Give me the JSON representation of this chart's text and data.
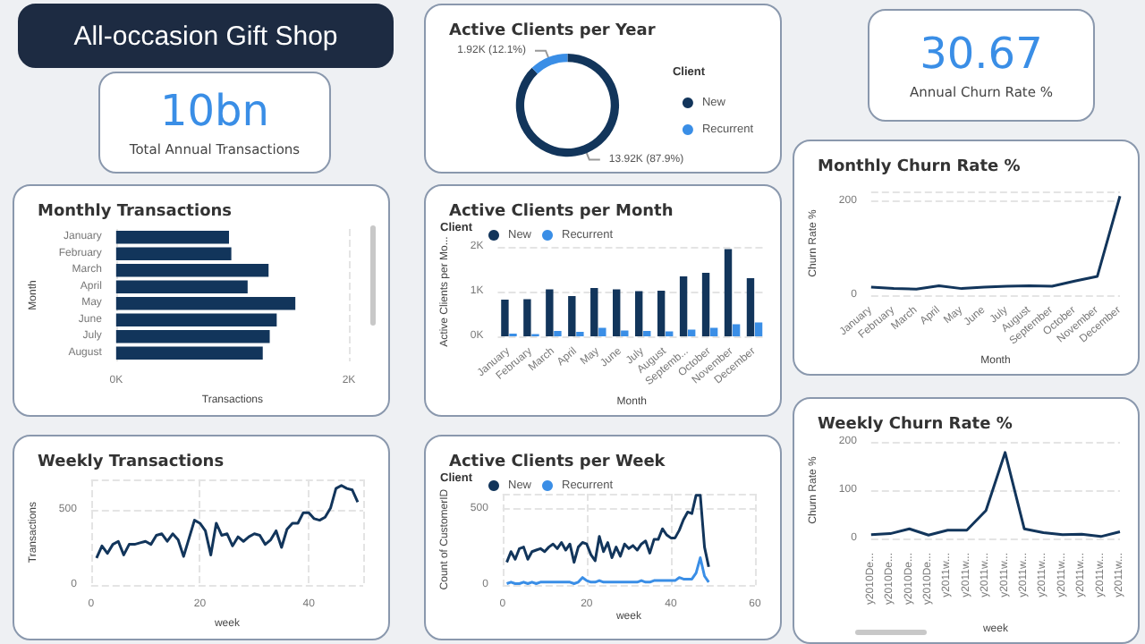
{
  "chart_data": [
    {
      "type": "other",
      "title": "All-occasion Gift Shop"
    },
    {
      "type": "donut",
      "title": "Active Clients per Year",
      "categories": [
        "New",
        "Recurrent"
      ],
      "values": [
        13920,
        1920
      ],
      "colors": [
        "#12355b",
        "#3a8ee6"
      ],
      "value_labels": [
        "13.92K (87.9%)",
        "1.92K (12.1%)"
      ],
      "legend": "right",
      "legend_title": "Client"
    },
    {
      "type": "other",
      "title": "Annual Churn Rate %",
      "values": [
        30.67
      ],
      "value_labels": [
        "30.67"
      ]
    },
    {
      "type": "other",
      "title": "Total Annual Transactions",
      "values": [
        10
      ],
      "value_labels": [
        "10bn"
      ]
    },
    {
      "type": "bar",
      "orientation": "horizontal",
      "title": "Monthly Transactions",
      "categories": [
        "January",
        "February",
        "March",
        "April",
        "May",
        "June",
        "July",
        "August"
      ],
      "values": [
        970,
        990,
        1310,
        1130,
        1540,
        1380,
        1320,
        1260
      ],
      "color": "#12355b",
      "xlim": [
        0,
        2000
      ],
      "xticks": [
        {
          "value": 0,
          "label": "0K"
        },
        {
          "value": 2000,
          "label": "2K"
        }
      ],
      "xlabel": "Transactions",
      "ylabel": "Month",
      "grid": "x"
    },
    {
      "type": "bar",
      "title": "Active Clients per Month",
      "categories": [
        "January",
        "February",
        "March",
        "April",
        "May",
        "June",
        "July",
        "August",
        "Septemb...",
        "October",
        "November",
        "December"
      ],
      "series": [
        {
          "name": "New",
          "color": "#12355b",
          "values": [
            820,
            830,
            1050,
            900,
            1080,
            1050,
            1010,
            1020,
            1340,
            1420,
            1950,
            1300
          ]
        },
        {
          "name": "Recurrent",
          "color": "#3a8ee6",
          "values": [
            60,
            50,
            120,
            100,
            190,
            130,
            120,
            110,
            150,
            190,
            270,
            310
          ]
        }
      ],
      "ylim": [
        0,
        2000
      ],
      "yticks": [
        {
          "value": 0,
          "label": "0K"
        },
        {
          "value": 1000,
          "label": "1K"
        },
        {
          "value": 2000,
          "label": "2K"
        }
      ],
      "xlabel": "Month",
      "ylabel": "Active Clients per Mo...",
      "legend": "top left",
      "legend_title": "Client",
      "grid": "y"
    },
    {
      "type": "line",
      "title": "Monthly Churn Rate %",
      "categories": [
        "January",
        "February",
        "March",
        "April",
        "May",
        "June",
        "July",
        "August",
        "September",
        "October",
        "November",
        "December"
      ],
      "values": [
        17,
        14,
        13,
        20,
        14,
        17,
        19,
        20,
        19,
        30,
        40,
        210
      ],
      "color": "#12355b",
      "ylim": [
        0,
        220
      ],
      "yticks": [
        0,
        200
      ],
      "xlabel": "Month",
      "ylabel": "Churn Rate %",
      "grid": "y",
      "marker": "none"
    },
    {
      "type": "line",
      "title": "Weekly Transactions",
      "x": [
        1,
        2,
        3,
        4,
        5,
        6,
        7,
        8,
        9,
        10,
        11,
        12,
        13,
        14,
        15,
        16,
        17,
        18,
        19,
        20,
        21,
        22,
        23,
        24,
        25,
        26,
        27,
        28,
        29,
        30,
        31,
        32,
        33,
        34,
        35,
        36,
        37,
        38,
        39,
        40,
        41,
        42,
        43,
        44,
        45,
        46,
        47,
        48,
        49
      ],
      "values": [
        180,
        260,
        210,
        270,
        290,
        200,
        270,
        270,
        280,
        290,
        270,
        330,
        340,
        290,
        340,
        300,
        190,
        310,
        430,
        410,
        360,
        200,
        410,
        330,
        340,
        260,
        320,
        290,
        320,
        340,
        330,
        270,
        300,
        360,
        250,
        370,
        410,
        410,
        480,
        480,
        440,
        430,
        450,
        510,
        640,
        660,
        640,
        630,
        550
      ],
      "color": "#12355b",
      "xlim": [
        0,
        50
      ],
      "xticks": [
        0,
        20,
        40
      ],
      "ylim": [
        0,
        700
      ],
      "yticks": [
        0,
        500
      ],
      "xlabel": "week",
      "ylabel": "Transactions",
      "grid": true,
      "marker": "none"
    },
    {
      "type": "line",
      "title": "Active Clients per Week",
      "x": [
        1,
        2,
        3,
        4,
        5,
        6,
        7,
        8,
        9,
        10,
        11,
        12,
        13,
        14,
        15,
        16,
        17,
        18,
        19,
        20,
        21,
        22,
        23,
        24,
        25,
        26,
        27,
        28,
        29,
        30,
        31,
        32,
        33,
        34,
        35,
        36,
        37,
        38,
        39,
        40,
        41,
        42,
        43,
        44,
        45,
        46,
        47,
        48,
        49
      ],
      "series": [
        {
          "name": "New",
          "color": "#12355b",
          "values": [
            150,
            220,
            170,
            240,
            250,
            170,
            220,
            230,
            240,
            220,
            250,
            270,
            240,
            280,
            230,
            270,
            150,
            250,
            280,
            270,
            200,
            160,
            320,
            220,
            280,
            180,
            250,
            190,
            270,
            240,
            260,
            230,
            270,
            290,
            210,
            300,
            300,
            370,
            330,
            310,
            310,
            360,
            430,
            480,
            470,
            590,
            590,
            250,
            120
          ]
        },
        {
          "name": "Recurrent",
          "color": "#3a8ee6",
          "values": [
            10,
            20,
            10,
            10,
            20,
            10,
            20,
            10,
            20,
            20,
            20,
            20,
            20,
            20,
            20,
            20,
            10,
            20,
            50,
            30,
            20,
            20,
            30,
            20,
            20,
            20,
            20,
            20,
            20,
            20,
            20,
            20,
            30,
            20,
            20,
            30,
            30,
            30,
            30,
            30,
            30,
            50,
            40,
            40,
            40,
            80,
            180,
            60,
            20
          ]
        }
      ],
      "xlim": [
        0,
        60
      ],
      "xticks": [
        0,
        20,
        40,
        60
      ],
      "ylim": [
        0,
        600
      ],
      "yticks": [
        0,
        500
      ],
      "xlabel": "week",
      "ylabel": "Count of CustomerID",
      "legend": "top left",
      "legend_title": "Client",
      "grid": true,
      "marker": "none"
    },
    {
      "type": "line",
      "title": "Weekly Churn Rate %",
      "categories": [
        "y2010De...",
        "y2010De...",
        "y2010De...",
        "y2010De...",
        "y2011w...",
        "y2011w...",
        "y2011w...",
        "y2011w...",
        "y2011w...",
        "y2011w...",
        "y2011w...",
        "y2011w...",
        "y2011w...",
        "y2011w..."
      ],
      "values": [
        8,
        10,
        20,
        7,
        17,
        17,
        58,
        178,
        20,
        12,
        8,
        9,
        4,
        14
      ],
      "color": "#12355b",
      "ylim": [
        0,
        200
      ],
      "yticks": [
        0,
        100,
        200
      ],
      "xlabel": "week",
      "ylabel": "Churn Rate %",
      "grid": "y",
      "marker": "none"
    }
  ]
}
